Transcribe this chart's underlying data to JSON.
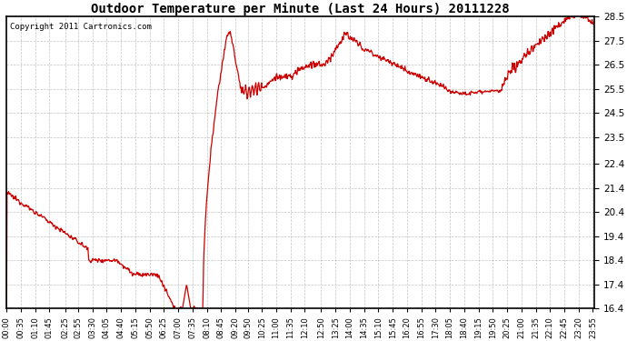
{
  "title": "Outdoor Temperature per Minute (Last 24 Hours) 20111228",
  "copyright": "Copyright 2011 Cartronics.com",
  "line_color": "#cc0000",
  "bg_color": "#ffffff",
  "plot_bg_color": "#ffffff",
  "grid_color": "#aaaaaa",
  "ylim": [
    16.4,
    28.5
  ],
  "yticks": [
    16.4,
    17.4,
    18.4,
    19.4,
    20.4,
    21.4,
    22.4,
    23.5,
    24.5,
    25.5,
    26.5,
    27.5,
    28.5
  ],
  "tick_minutes": [
    0,
    35,
    70,
    105,
    145,
    175,
    210,
    245,
    280,
    315,
    350,
    385,
    420,
    455,
    490,
    525,
    560,
    590,
    625,
    660,
    695,
    730,
    770,
    805,
    840,
    875,
    910,
    945,
    980,
    1015,
    1050,
    1085,
    1120,
    1155,
    1190,
    1225,
    1260,
    1295,
    1330,
    1365,
    1400,
    1435
  ],
  "n": 1440
}
